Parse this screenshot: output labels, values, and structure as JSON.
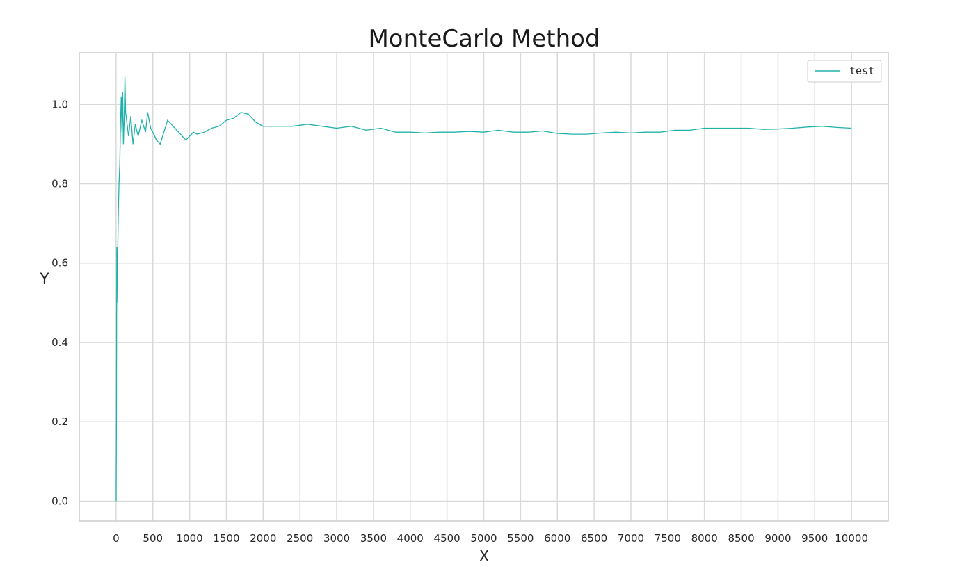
{
  "chart_data": {
    "type": "line",
    "title": "MonteCarlo Method",
    "xlabel": "X",
    "ylabel": "Y",
    "xlim": [
      -500,
      10500
    ],
    "ylim": [
      -0.05,
      1.13
    ],
    "xticks": [
      0,
      500,
      1000,
      1500,
      2000,
      2500,
      3000,
      3500,
      4000,
      4500,
      5000,
      5500,
      6000,
      6500,
      7000,
      7500,
      8000,
      8500,
      9000,
      9500,
      10000
    ],
    "yticks": [
      0.0,
      0.2,
      0.4,
      0.6,
      0.8,
      1.0
    ],
    "ytick_labels": [
      "0.0",
      "0.2",
      "0.4",
      "0.6",
      "0.8",
      "1.0"
    ],
    "grid": true,
    "legend_position": "top-right",
    "series": [
      {
        "name": "test",
        "color": "#20b2aa",
        "points": [
          [
            1,
            0.0
          ],
          [
            5,
            0.2
          ],
          [
            8,
            0.5
          ],
          [
            10,
            0.64
          ],
          [
            12,
            0.5
          ],
          [
            15,
            0.55
          ],
          [
            20,
            0.6
          ],
          [
            30,
            0.72
          ],
          [
            40,
            0.8
          ],
          [
            50,
            0.85
          ],
          [
            60,
            0.95
          ],
          [
            70,
            1.02
          ],
          [
            80,
            0.93
          ],
          [
            90,
            1.03
          ],
          [
            100,
            0.9
          ],
          [
            110,
            0.96
          ],
          [
            120,
            1.07
          ],
          [
            130,
            0.98
          ],
          [
            150,
            0.95
          ],
          [
            170,
            0.92
          ],
          [
            200,
            0.97
          ],
          [
            230,
            0.9
          ],
          [
            260,
            0.95
          ],
          [
            300,
            0.92
          ],
          [
            350,
            0.96
          ],
          [
            400,
            0.93
          ],
          [
            430,
            0.98
          ],
          [
            470,
            0.94
          ],
          [
            500,
            0.93
          ],
          [
            550,
            0.91
          ],
          [
            600,
            0.9
          ],
          [
            650,
            0.93
          ],
          [
            700,
            0.96
          ],
          [
            750,
            0.95
          ],
          [
            800,
            0.94
          ],
          [
            850,
            0.93
          ],
          [
            900,
            0.92
          ],
          [
            950,
            0.91
          ],
          [
            1000,
            0.92
          ],
          [
            1050,
            0.93
          ],
          [
            1100,
            0.925
          ],
          [
            1200,
            0.93
          ],
          [
            1300,
            0.94
          ],
          [
            1400,
            0.945
          ],
          [
            1500,
            0.96
          ],
          [
            1600,
            0.965
          ],
          [
            1700,
            0.98
          ],
          [
            1800,
            0.975
          ],
          [
            1900,
            0.955
          ],
          [
            2000,
            0.945
          ],
          [
            2200,
            0.945
          ],
          [
            2400,
            0.945
          ],
          [
            2600,
            0.95
          ],
          [
            2800,
            0.945
          ],
          [
            3000,
            0.94
          ],
          [
            3200,
            0.945
          ],
          [
            3400,
            0.935
          ],
          [
            3600,
            0.94
          ],
          [
            3800,
            0.93
          ],
          [
            4000,
            0.93
          ],
          [
            4200,
            0.928
          ],
          [
            4400,
            0.93
          ],
          [
            4600,
            0.93
          ],
          [
            4800,
            0.932
          ],
          [
            5000,
            0.93
          ],
          [
            5200,
            0.935
          ],
          [
            5400,
            0.93
          ],
          [
            5600,
            0.93
          ],
          [
            5800,
            0.933
          ],
          [
            6000,
            0.927
          ],
          [
            6200,
            0.925
          ],
          [
            6400,
            0.925
          ],
          [
            6600,
            0.928
          ],
          [
            6800,
            0.93
          ],
          [
            7000,
            0.928
          ],
          [
            7200,
            0.93
          ],
          [
            7400,
            0.93
          ],
          [
            7600,
            0.935
          ],
          [
            7800,
            0.935
          ],
          [
            8000,
            0.94
          ],
          [
            8200,
            0.94
          ],
          [
            8400,
            0.94
          ],
          [
            8600,
            0.94
          ],
          [
            8800,
            0.937
          ],
          [
            9000,
            0.938
          ],
          [
            9200,
            0.94
          ],
          [
            9400,
            0.943
          ],
          [
            9600,
            0.945
          ],
          [
            9800,
            0.942
          ],
          [
            10000,
            0.94
          ]
        ]
      }
    ]
  }
}
